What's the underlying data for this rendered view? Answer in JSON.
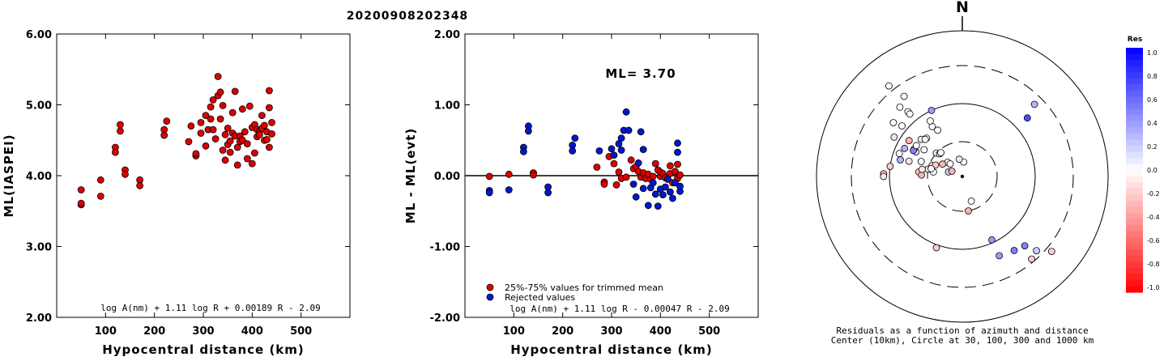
{
  "title": "20200908202348",
  "chart_data": [
    {
      "type": "scatter",
      "xlabel": "Hypocentral distance (km)",
      "ylabel": "ML(IASPEI)",
      "xlim": [
        0,
        600
      ],
      "ylim": [
        2,
        6
      ],
      "xticks": [
        "100",
        "200",
        "300",
        "400",
        "500"
      ],
      "yticks": [
        "2.00",
        "3.00",
        "4.00",
        "5.00",
        "6.00"
      ],
      "formula": "log A(nm) + 1.11 log R + 0.00189 R - 2.09",
      "marker_color": "#dd0000",
      "points": [
        [
          50,
          3.8
        ],
        [
          50,
          3.59
        ],
        [
          50,
          3.61
        ],
        [
          90,
          3.94
        ],
        [
          90,
          3.71
        ],
        [
          120,
          4.4
        ],
        [
          120,
          4.33
        ],
        [
          130,
          4.72
        ],
        [
          130,
          4.63
        ],
        [
          140,
          4.08
        ],
        [
          140,
          4.02
        ],
        [
          170,
          3.94
        ],
        [
          170,
          3.86
        ],
        [
          220,
          4.65
        ],
        [
          220,
          4.57
        ],
        [
          225,
          4.77
        ],
        [
          270,
          4.48
        ],
        [
          275,
          4.7
        ],
        [
          285,
          4.28
        ],
        [
          285,
          4.31
        ],
        [
          295,
          4.6
        ],
        [
          295,
          4.75
        ],
        [
          305,
          4.85
        ],
        [
          305,
          4.42
        ],
        [
          310,
          4.65
        ],
        [
          315,
          4.8
        ],
        [
          315,
          4.97
        ],
        [
          320,
          5.07
        ],
        [
          320,
          4.65
        ],
        [
          325,
          4.52
        ],
        [
          330,
          5.4
        ],
        [
          330,
          5.13
        ],
        [
          335,
          4.8
        ],
        [
          335,
          5.18
        ],
        [
          340,
          4.99
        ],
        [
          340,
          4.36
        ],
        [
          345,
          4.58
        ],
        [
          345,
          4.22
        ],
        [
          350,
          4.44
        ],
        [
          350,
          4.67
        ],
        [
          355,
          4.49
        ],
        [
          355,
          4.33
        ],
        [
          360,
          4.6
        ],
        [
          360,
          4.89
        ],
        [
          365,
          4.56
        ],
        [
          365,
          5.19
        ],
        [
          370,
          4.15
        ],
        [
          370,
          4.4
        ],
        [
          375,
          4.56
        ],
        [
          375,
          4.48
        ],
        [
          380,
          4.94
        ],
        [
          380,
          4.5
        ],
        [
          385,
          4.62
        ],
        [
          390,
          4.24
        ],
        [
          390,
          4.45
        ],
        [
          395,
          4.98
        ],
        [
          400,
          4.68
        ],
        [
          400,
          4.17
        ],
        [
          405,
          4.72
        ],
        [
          405,
          4.32
        ],
        [
          410,
          4.55
        ],
        [
          410,
          4.65
        ],
        [
          415,
          4.63
        ],
        [
          415,
          4.58
        ],
        [
          420,
          4.67
        ],
        [
          420,
          4.85
        ],
        [
          425,
          4.5
        ],
        [
          425,
          4.71
        ],
        [
          430,
          4.62
        ],
        [
          430,
          4.51
        ],
        [
          435,
          4.96
        ],
        [
          435,
          5.2
        ],
        [
          435,
          4.4
        ],
        [
          440,
          4.75
        ],
        [
          440,
          4.59
        ]
      ]
    },
    {
      "type": "scatter",
      "xlabel": "Hypocentral distance (km)",
      "ylabel": "ML - ML(evt)",
      "xlim": [
        0,
        600
      ],
      "ylim": [
        -2,
        2
      ],
      "xticks": [
        "100",
        "200",
        "300",
        "400",
        "500"
      ],
      "yticks": [
        "-2.00",
        "-1.00",
        "0.00",
        "1.00",
        "2.00"
      ],
      "annotation": "ML= 3.70",
      "legend": [
        "25%-75% values for trimmed mean",
        "Rejected values"
      ],
      "formula": "log A(nm) + 1.11 log R - 0.00047 R - 2.09",
      "series": [
        {
          "name": "25%-75% values for trimmed mean",
          "color": "#dd0000",
          "points": [
            [
              50,
              -0.01
            ],
            [
              90,
              0.02
            ],
            [
              140,
              0.04
            ],
            [
              140,
              0.01
            ],
            [
              270,
              0.12
            ],
            [
              285,
              -0.09
            ],
            [
              285,
              -0.12
            ],
            [
              295,
              0.27
            ],
            [
              305,
              0.17
            ],
            [
              310,
              -0.13
            ],
            [
              315,
              0.05
            ],
            [
              320,
              -0.04
            ],
            [
              330,
              -0.02
            ],
            [
              340,
              0.22
            ],
            [
              345,
              0.1
            ],
            [
              350,
              0.13
            ],
            [
              355,
              0.06
            ],
            [
              360,
              -0.02
            ],
            [
              365,
              0.04
            ],
            [
              370,
              -0.04
            ],
            [
              375,
              0.02
            ],
            [
              380,
              -0.05
            ],
            [
              385,
              -0.01
            ],
            [
              390,
              0.17
            ],
            [
              395,
              0.08
            ],
            [
              400,
              -0.01
            ],
            [
              400,
              0.05
            ],
            [
              405,
              0.03
            ],
            [
              410,
              -0.03
            ],
            [
              415,
              -0.05
            ],
            [
              420,
              0.14
            ],
            [
              420,
              0.03
            ],
            [
              425,
              -0.1
            ],
            [
              430,
              0.06
            ],
            [
              435,
              0.16
            ],
            [
              435,
              -0.04
            ],
            [
              440,
              0.01
            ]
          ]
        },
        {
          "name": "Rejected values",
          "color": "#0018cc",
          "points": [
            [
              50,
              -0.21
            ],
            [
              50,
              -0.24
            ],
            [
              90,
              -0.2
            ],
            [
              120,
              0.4
            ],
            [
              120,
              0.34
            ],
            [
              130,
              0.7
            ],
            [
              130,
              0.63
            ],
            [
              170,
              -0.16
            ],
            [
              170,
              -0.24
            ],
            [
              220,
              0.43
            ],
            [
              220,
              0.35
            ],
            [
              225,
              0.53
            ],
            [
              275,
              0.35
            ],
            [
              300,
              0.38
            ],
            [
              305,
              0.29
            ],
            [
              315,
              0.45
            ],
            [
              320,
              0.53
            ],
            [
              320,
              0.36
            ],
            [
              325,
              0.64
            ],
            [
              330,
              0.9
            ],
            [
              335,
              0.64
            ],
            [
              345,
              -0.12
            ],
            [
              350,
              -0.3
            ],
            [
              355,
              0.18
            ],
            [
              360,
              0.62
            ],
            [
              365,
              0.37
            ],
            [
              365,
              -0.18
            ],
            [
              375,
              -0.42
            ],
            [
              380,
              -0.17
            ],
            [
              385,
              -0.1
            ],
            [
              390,
              -0.26
            ],
            [
              395,
              -0.43
            ],
            [
              400,
              -0.19
            ],
            [
              405,
              -0.27
            ],
            [
              410,
              -0.16
            ],
            [
              415,
              -0.05
            ],
            [
              420,
              -0.23
            ],
            [
              425,
              -0.32
            ],
            [
              430,
              -0.1
            ],
            [
              435,
              0.46
            ],
            [
              435,
              0.33
            ],
            [
              440,
              -0.22
            ],
            [
              440,
              -0.15
            ]
          ]
        }
      ]
    },
    {
      "type": "polar-scatter",
      "north_label": "N",
      "caption_line1": "Residuals as a function of azimuth and distance",
      "caption_line2": "Center (10km), Circle at 30, 100, 300 and 1000 km",
      "colorbar_title": "Res",
      "colorbar_ticks": [
        "1.0",
        "0.8",
        "0.6",
        "0.4",
        "0.2",
        "0.0",
        "-0.2",
        "-0.4",
        "-0.6",
        "-0.8",
        "-1.0"
      ],
      "rings": [
        {
          "radius_km": 30,
          "style": "dashed"
        },
        {
          "radius_km": 100,
          "style": "solid"
        },
        {
          "radius_km": 300,
          "style": "dashed"
        },
        {
          "radius_km": 1000,
          "style": "solid"
        }
      ],
      "points": [
        [
          -52,
          0.3,
          0.0
        ],
        [
          -50,
          0.27,
          0.0
        ],
        [
          -60,
          0.27,
          0.1
        ],
        [
          -25,
          0.25,
          0.4
        ],
        [
          -55,
          0.16,
          0.0
        ],
        [
          5,
          0.05,
          0.0
        ],
        [
          -10,
          0.06,
          0.1
        ],
        [
          -48,
          0.12,
          -0.1
        ],
        [
          -45,
          0.11,
          0.0
        ],
        [
          -42,
          0.11,
          0.0
        ],
        [
          -46,
          0.07,
          0.0
        ],
        [
          -58,
          0.08,
          -0.3
        ],
        [
          -64,
          0.22,
          0.3
        ],
        [
          -62,
          0.18,
          0.1
        ],
        [
          -70,
          0.11,
          -0.1
        ],
        [
          -67,
          0.1,
          -0.2
        ],
        [
          -72,
          0.05,
          0.2
        ],
        [
          -74,
          0.19,
          -0.1
        ],
        [
          -70,
          0.15,
          0.0
        ],
        [
          -60,
          0.19,
          -0.2
        ],
        [
          -63,
          0.04,
          -0.3
        ],
        [
          -44,
          0.06,
          0.0
        ],
        [
          -70,
          0.23,
          0.0
        ],
        [
          -75,
          0.22,
          0.3
        ],
        [
          -82,
          0.25,
          -0.2
        ],
        [
          -88,
          0.27,
          -0.3
        ],
        [
          -84,
          0.15,
          -0.2
        ],
        [
          -88,
          0.14,
          -0.3
        ],
        [
          -81,
          0.1,
          0.0
        ],
        [
          -78,
          0.12,
          0.1
        ],
        [
          -62,
          0.19,
          0.5
        ],
        [
          -43,
          0.18,
          0.0
        ],
        [
          -48,
          0.19,
          -0.1
        ],
        [
          -56,
          0.19,
          0.0
        ],
        [
          -80,
          0.14,
          -0.1
        ],
        [
          -76,
          0.11,
          0.0
        ],
        [
          -90,
          0.27,
          -0.1
        ],
        [
          -56,
          0.22,
          -0.3
        ],
        [
          -39,
          0.4,
          0.0
        ],
        [
          -40,
          0.29,
          0.0
        ],
        [
          -42,
          0.32,
          0.0
        ],
        [
          -40,
          0.28,
          0.0
        ],
        [
          -36,
          0.34,
          0.0
        ],
        [
          -31,
          0.2,
          0.0
        ],
        [
          -28,
          0.18,
          0.0
        ],
        [
          -30,
          0.22,
          0.0
        ],
        [
          -45,
          0.18,
          0.0
        ],
        [
          200,
          0.26,
          -0.2
        ],
        [
          155,
          0.24,
          0.4
        ],
        [
          145,
          0.31,
          0.5
        ],
        [
          138,
          0.32,
          0.5
        ],
        [
          155,
          0.3,
          0.4
        ],
        [
          160,
          0.09,
          0.0
        ],
        [
          170,
          0.12,
          -0.3
        ],
        [
          135,
          0.36,
          0.2
        ],
        [
          140,
          0.37,
          -0.2
        ],
        [
          130,
          0.4,
          -0.2
        ],
        [
          45,
          0.35,
          0.3
        ],
        [
          48,
          0.3,
          0.7
        ]
      ]
    }
  ]
}
